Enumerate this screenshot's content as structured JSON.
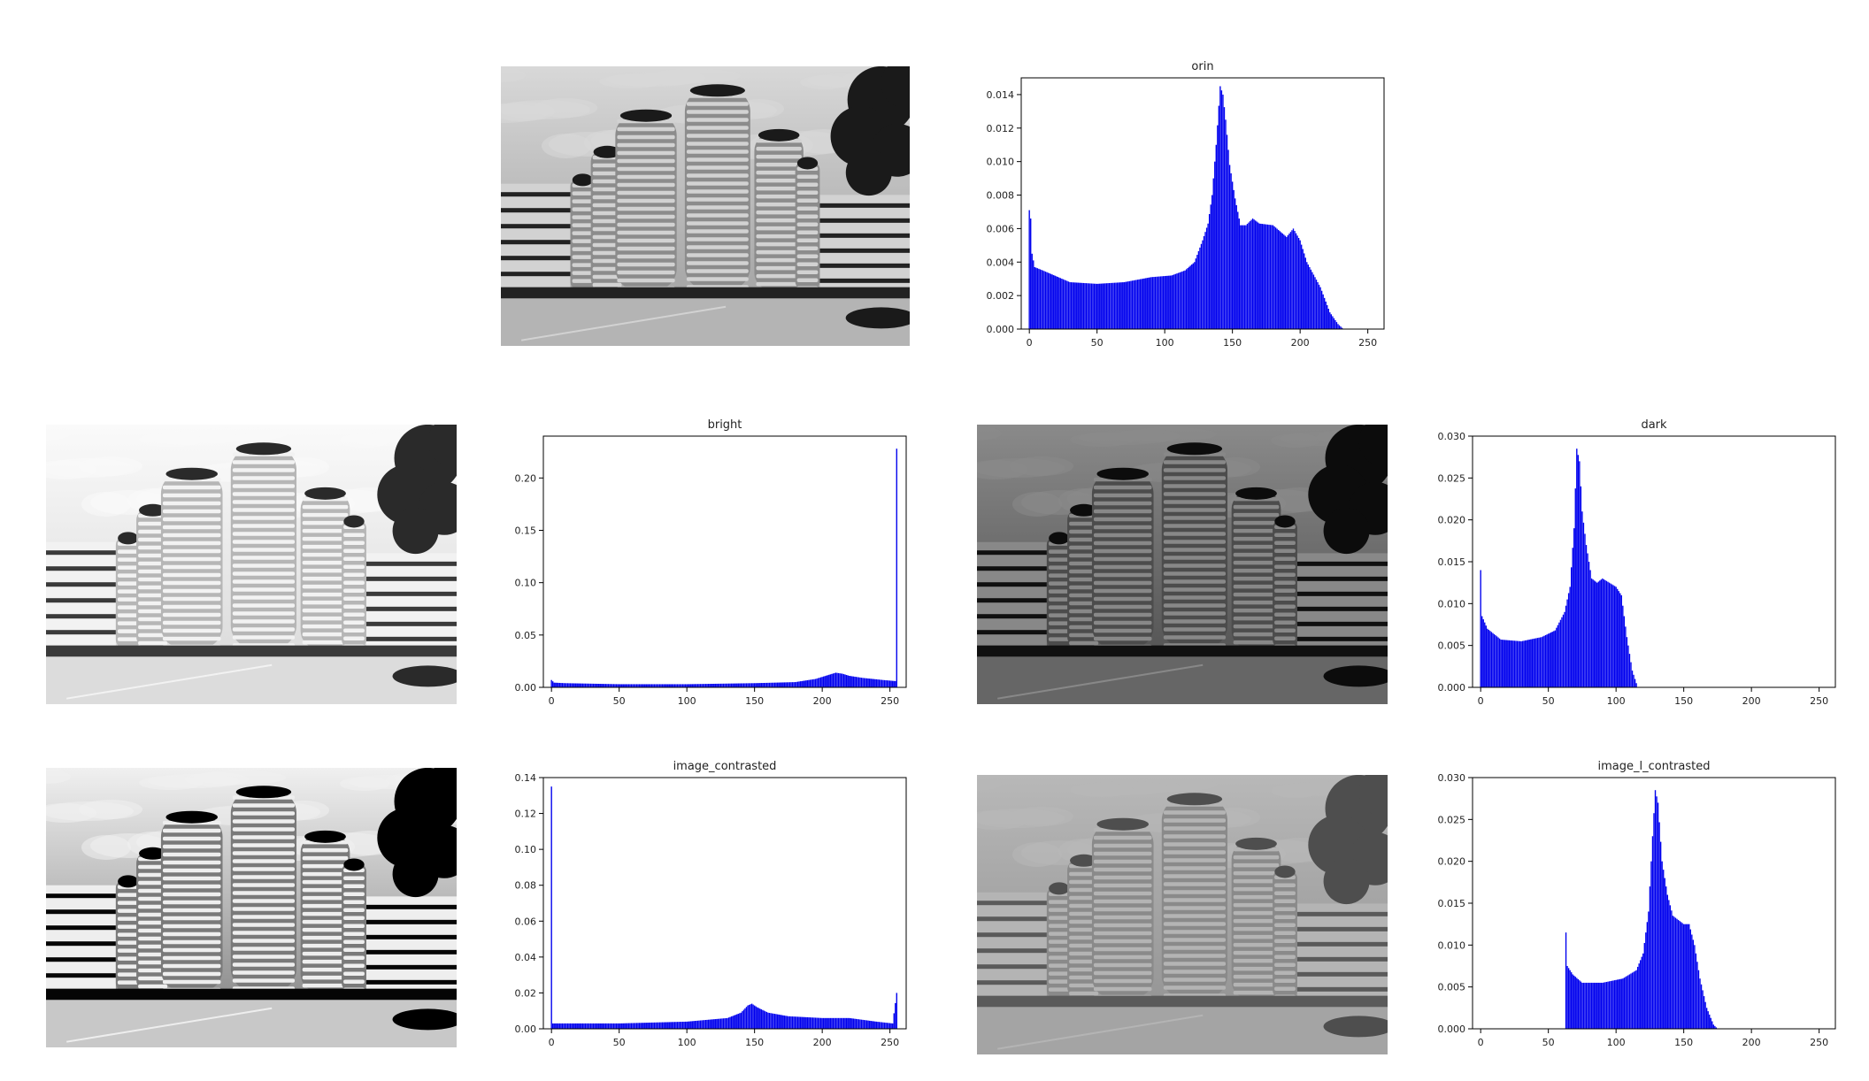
{
  "colors": {
    "bars": "#0000ee",
    "axes": "#000000",
    "page": "#ffffff"
  },
  "photos": [
    {
      "id": "orin",
      "tone": "normal"
    },
    {
      "id": "bright",
      "tone": "bright"
    },
    {
      "id": "dark",
      "tone": "dark"
    },
    {
      "id": "image_contrasted",
      "tone": "contrast"
    },
    {
      "id": "image_l_contrasted",
      "tone": "low-contrast"
    }
  ],
  "chart_data": [
    {
      "type": "bar",
      "title": "orin",
      "xlim": [
        -6,
        262
      ],
      "ylim": [
        0,
        0.015
      ],
      "xticks": [
        0,
        50,
        100,
        150,
        200,
        250
      ],
      "yticks": [
        0.0,
        0.002,
        0.004,
        0.006,
        0.008,
        0.01,
        0.012,
        0.014
      ],
      "yticks_labels": [
        "0.000",
        "0.002",
        "0.004",
        "0.006",
        "0.008",
        "0.010",
        "0.012",
        "0.014"
      ],
      "grid": false,
      "profile": [
        [
          0,
          0.0071
        ],
        [
          1,
          0.0066
        ],
        [
          2,
          0.0045
        ],
        [
          4,
          0.0037
        ],
        [
          10,
          0.0035
        ],
        [
          30,
          0.0028
        ],
        [
          50,
          0.0027
        ],
        [
          70,
          0.0028
        ],
        [
          90,
          0.0031
        ],
        [
          105,
          0.0032
        ],
        [
          115,
          0.0035
        ],
        [
          122,
          0.004
        ],
        [
          128,
          0.0053
        ],
        [
          132,
          0.0063
        ],
        [
          135,
          0.008
        ],
        [
          138,
          0.011
        ],
        [
          141,
          0.0145
        ],
        [
          143,
          0.014
        ],
        [
          145,
          0.0125
        ],
        [
          148,
          0.0098
        ],
        [
          152,
          0.0078
        ],
        [
          156,
          0.0062
        ],
        [
          160,
          0.0062
        ],
        [
          165,
          0.0066
        ],
        [
          170,
          0.0063
        ],
        [
          180,
          0.0062
        ],
        [
          190,
          0.0055
        ],
        [
          195,
          0.006
        ],
        [
          200,
          0.0053
        ],
        [
          205,
          0.004
        ],
        [
          215,
          0.0025
        ],
        [
          222,
          0.001
        ],
        [
          228,
          0.0003
        ],
        [
          232,
          0.0
        ]
      ]
    },
    {
      "type": "bar",
      "title": "bright",
      "xlim": [
        -6,
        262
      ],
      "ylim": [
        0,
        0.24
      ],
      "xticks": [
        0,
        50,
        100,
        150,
        200,
        250
      ],
      "yticks": [
        0.0,
        0.05,
        0.1,
        0.15,
        0.2
      ],
      "yticks_labels": [
        "0.00",
        "0.05",
        "0.10",
        "0.15",
        "0.20"
      ],
      "grid": false,
      "profile": [
        [
          0,
          0.007
        ],
        [
          2,
          0.0045
        ],
        [
          10,
          0.004
        ],
        [
          50,
          0.003
        ],
        [
          100,
          0.003
        ],
        [
          150,
          0.004
        ],
        [
          180,
          0.005
        ],
        [
          195,
          0.008
        ],
        [
          205,
          0.012
        ],
        [
          210,
          0.014
        ],
        [
          215,
          0.013
        ],
        [
          220,
          0.011
        ],
        [
          230,
          0.009
        ],
        [
          245,
          0.007
        ],
        [
          254,
          0.006
        ],
        [
          255,
          0.228
        ]
      ]
    },
    {
      "type": "bar",
      "title": "dark",
      "xlim": [
        -6,
        262
      ],
      "ylim": [
        0,
        0.03
      ],
      "xticks": [
        0,
        50,
        100,
        150,
        200,
        250
      ],
      "yticks": [
        0.0,
        0.005,
        0.01,
        0.015,
        0.02,
        0.025,
        0.03
      ],
      "yticks_labels": [
        "0.000",
        "0.005",
        "0.010",
        "0.015",
        "0.020",
        "0.025",
        "0.030"
      ],
      "grid": false,
      "profile": [
        [
          0,
          0.014
        ],
        [
          1,
          0.0085
        ],
        [
          5,
          0.007
        ],
        [
          15,
          0.0057
        ],
        [
          30,
          0.0055
        ],
        [
          45,
          0.006
        ],
        [
          55,
          0.0068
        ],
        [
          62,
          0.009
        ],
        [
          66,
          0.012
        ],
        [
          69,
          0.019
        ],
        [
          71,
          0.0285
        ],
        [
          73,
          0.027
        ],
        [
          75,
          0.021
        ],
        [
          78,
          0.017
        ],
        [
          82,
          0.013
        ],
        [
          86,
          0.0125
        ],
        [
          90,
          0.013
        ],
        [
          95,
          0.0125
        ],
        [
          100,
          0.012
        ],
        [
          104,
          0.011
        ],
        [
          108,
          0.006
        ],
        [
          112,
          0.002
        ],
        [
          116,
          0.0
        ]
      ]
    },
    {
      "type": "bar",
      "title": "image_contrasted",
      "xlim": [
        -6,
        262
      ],
      "ylim": [
        0,
        0.14
      ],
      "xticks": [
        0,
        50,
        100,
        150,
        200,
        250
      ],
      "yticks": [
        0.0,
        0.02,
        0.04,
        0.06,
        0.08,
        0.1,
        0.12,
        0.14
      ],
      "yticks_labels": [
        "0.00",
        "0.02",
        "0.04",
        "0.06",
        "0.08",
        "0.10",
        "0.12",
        "0.14"
      ],
      "grid": false,
      "profile": [
        [
          0,
          0.135
        ],
        [
          1,
          0.003
        ],
        [
          50,
          0.003
        ],
        [
          100,
          0.004
        ],
        [
          130,
          0.006
        ],
        [
          140,
          0.009
        ],
        [
          145,
          0.013
        ],
        [
          148,
          0.014
        ],
        [
          152,
          0.012
        ],
        [
          160,
          0.009
        ],
        [
          175,
          0.007
        ],
        [
          200,
          0.006
        ],
        [
          220,
          0.006
        ],
        [
          240,
          0.004
        ],
        [
          252,
          0.003
        ],
        [
          255,
          0.02
        ]
      ]
    },
    {
      "type": "bar",
      "title": "image_l_contrasted",
      "xlim": [
        -6,
        262
      ],
      "ylim": [
        0,
        0.03
      ],
      "xticks": [
        0,
        50,
        100,
        150,
        200,
        250
      ],
      "yticks": [
        0.0,
        0.005,
        0.01,
        0.015,
        0.02,
        0.025,
        0.03
      ],
      "yticks_labels": [
        "0.000",
        "0.005",
        "0.010",
        "0.015",
        "0.020",
        "0.025",
        "0.030"
      ],
      "grid": false,
      "profile": [
        [
          63,
          0.0115
        ],
        [
          64,
          0.0075
        ],
        [
          68,
          0.0065
        ],
        [
          75,
          0.0055
        ],
        [
          90,
          0.0055
        ],
        [
          105,
          0.006
        ],
        [
          115,
          0.007
        ],
        [
          120,
          0.009
        ],
        [
          124,
          0.014
        ],
        [
          127,
          0.023
        ],
        [
          129,
          0.0285
        ],
        [
          131,
          0.027
        ],
        [
          134,
          0.02
        ],
        [
          138,
          0.016
        ],
        [
          142,
          0.0135
        ],
        [
          146,
          0.013
        ],
        [
          150,
          0.0125
        ],
        [
          154,
          0.0125
        ],
        [
          158,
          0.01
        ],
        [
          162,
          0.006
        ],
        [
          167,
          0.0025
        ],
        [
          172,
          0.0005
        ],
        [
          175,
          0.0
        ]
      ]
    }
  ]
}
